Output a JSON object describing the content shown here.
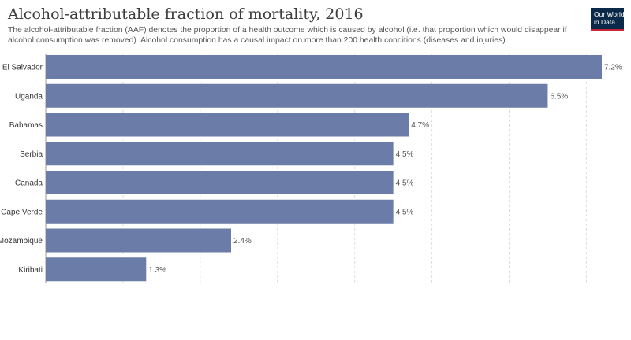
{
  "header": {
    "title": "Alcohol-attributable fraction of mortality, 2016",
    "subtitle": "The alcohol-attributable fraction (AAF) denotes the proportion of a health outcome which is caused by alcohol (i.e. that proportion which would disappear if alcohol consumption was removed). Alcohol consumption has a causal impact on more than 200 health conditions (diseases and injuries)."
  },
  "logo": {
    "line1": "Our World",
    "line2": "in Data"
  },
  "chart_data": {
    "type": "bar",
    "orientation": "horizontal",
    "title": "Alcohol-attributable fraction of mortality, 2016",
    "categories": [
      "El Salvador",
      "Uganda",
      "Bahamas",
      "Serbia",
      "Canada",
      "Cape Verde",
      "Mozambique",
      "Kiribati"
    ],
    "values": [
      7.2,
      6.5,
      4.7,
      4.5,
      4.5,
      4.5,
      2.4,
      1.3
    ],
    "value_labels": [
      "7.2%",
      "6.5%",
      "4.7%",
      "4.5%",
      "4.5%",
      "4.5%",
      "2.4%",
      "1.3%"
    ],
    "unit": "%",
    "xlim": [
      0,
      7.2
    ],
    "grid": true,
    "bar_color": "#6a7ca7"
  }
}
